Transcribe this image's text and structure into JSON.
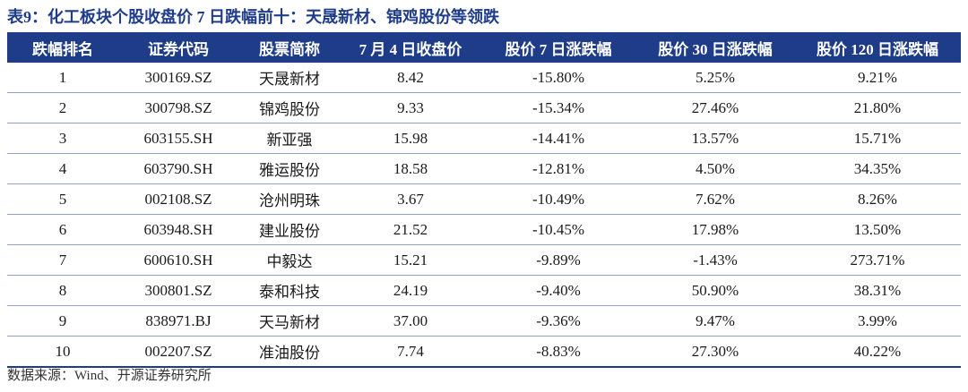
{
  "title": "表9：化工板块个股收盘价 7 日跌幅前十：天晟新材、锦鸡股份等领跌",
  "table": {
    "headers": [
      "跌幅排名",
      "证券代码",
      "股票简称",
      "7 月 4 日收盘价",
      "股价 7 日涨跌幅",
      "股价 30 日涨跌幅",
      "股价 120 日涨跌幅"
    ],
    "rows": [
      [
        "1",
        "300169.SZ",
        "天晟新材",
        "8.42",
        "-15.80%",
        "5.25%",
        "9.21%"
      ],
      [
        "2",
        "300798.SZ",
        "锦鸡股份",
        "9.33",
        "-15.34%",
        "27.46%",
        "21.80%"
      ],
      [
        "3",
        "603155.SH",
        "新亚强",
        "15.98",
        "-14.41%",
        "13.57%",
        "15.71%"
      ],
      [
        "4",
        "603790.SH",
        "雅运股份",
        "18.58",
        "-12.81%",
        "4.50%",
        "34.35%"
      ],
      [
        "5",
        "002108.SZ",
        "沧州明珠",
        "3.67",
        "-10.49%",
        "7.62%",
        "8.26%"
      ],
      [
        "6",
        "603948.SH",
        "建业股份",
        "21.52",
        "-10.45%",
        "17.98%",
        "13.50%"
      ],
      [
        "7",
        "600610.SH",
        "中毅达",
        "15.21",
        "-9.89%",
        "-1.43%",
        "273.71%"
      ],
      [
        "8",
        "300801.SZ",
        "泰和科技",
        "24.19",
        "-9.40%",
        "50.90%",
        "38.31%"
      ],
      [
        "9",
        "838971.BJ",
        "天马新材",
        "37.00",
        "-9.36%",
        "9.47%",
        "3.99%"
      ],
      [
        "10",
        "002207.SZ",
        "准油股份",
        "7.74",
        "-8.83%",
        "27.30%",
        "40.22%"
      ]
    ]
  },
  "source": "数据来源：Wind、开源证券研究所",
  "colors": {
    "header_bg": "#1f3c88",
    "title": "#1f3c88"
  }
}
